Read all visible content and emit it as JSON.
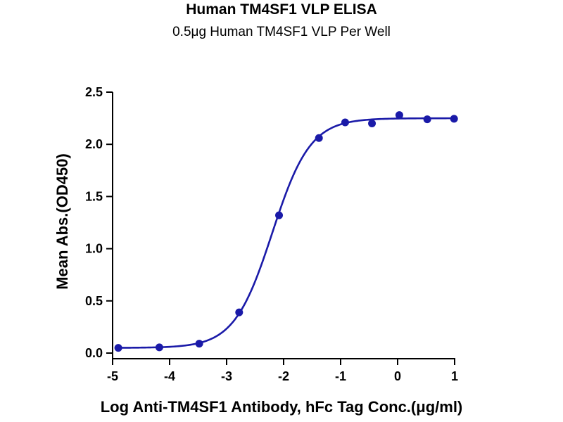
{
  "chart_data": {
    "type": "scatter",
    "title": "Human TM4SF1 VLP ELISA",
    "subtitle": "0.5μg Human TM4SF1 VLP Per Well",
    "xlabel": "Log Anti-TM4SF1 Antibody, hFc Tag Conc.(μg/ml)",
    "ylabel": "Mean Abs.(OD450)",
    "xlim": [
      -5,
      1
    ],
    "ylim": [
      0,
      2.5
    ],
    "x_ticks": [
      "-5",
      "-4",
      "-3",
      "-2",
      "-1",
      "0",
      "1"
    ],
    "y_ticks": [
      "0.0",
      "0.5",
      "1.0",
      "1.5",
      "2.0",
      "2.5"
    ],
    "x_tick_values": [
      -5,
      -4,
      -3,
      -2,
      -1,
      0,
      1
    ],
    "y_tick_values": [
      0,
      0.5,
      1,
      1.5,
      2,
      2.5
    ],
    "grid": false,
    "series": [
      {
        "points_x": [
          -4.9,
          -4.18,
          -3.48,
          -2.78,
          -2.08,
          -1.38,
          -0.92,
          -0.45,
          0.03,
          0.52,
          0.99
        ],
        "points_y": [
          0.05,
          0.055,
          0.09,
          0.39,
          1.32,
          2.06,
          2.21,
          2.2,
          2.28,
          2.24,
          2.245
        ],
        "fit_curve": {
          "model": "4PL",
          "bottom": 0.05,
          "top": 2.25,
          "log_ec50": -2.2,
          "hill_slope": 1.3
        }
      }
    ],
    "colors": {
      "series": "#1a1aa8",
      "axis": "#000000"
    }
  }
}
